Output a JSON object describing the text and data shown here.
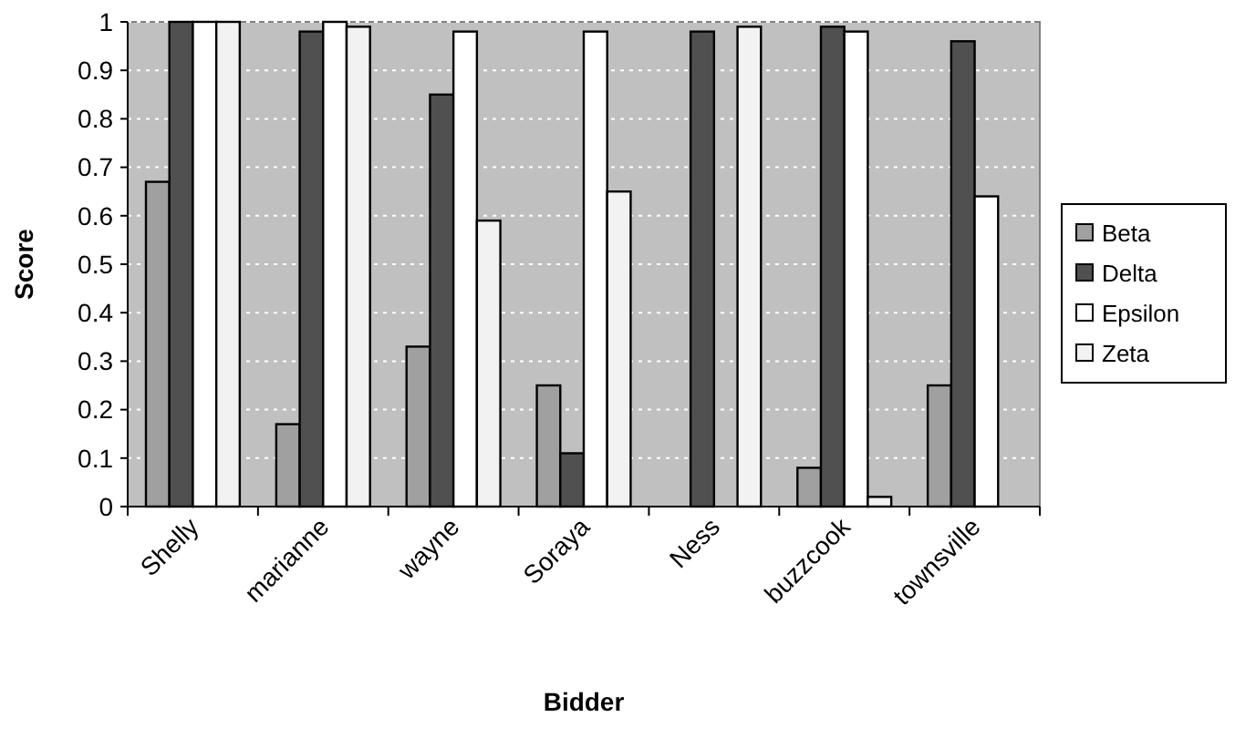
{
  "chart_data": {
    "type": "bar",
    "xlabel": "Bidder",
    "ylabel": "Score",
    "categories": [
      "Shelly",
      "marianne",
      "wayne",
      "Soraya",
      "Ness",
      "buzzcook",
      "townsville"
    ],
    "series": [
      {
        "name": "Beta",
        "color": "#a0a0a0",
        "values": [
          0.67,
          0.17,
          0.33,
          0.25,
          0,
          0.08,
          0.25
        ]
      },
      {
        "name": "Delta",
        "color": "#505050",
        "values": [
          1,
          0.98,
          0.85,
          0.11,
          0.98,
          0.99,
          0.96
        ]
      },
      {
        "name": "Epsilon",
        "color": "#ffffff",
        "values": [
          1,
          1,
          0.98,
          0.98,
          0,
          0.98,
          0.64
        ]
      },
      {
        "name": "Zeta",
        "color": "#f2f2f2",
        "values": [
          1,
          0.99,
          0.59,
          0.65,
          0.99,
          0.02,
          0
        ]
      }
    ],
    "ylim": [
      0,
      1
    ],
    "yticks": [
      0,
      0.1,
      0.2,
      0.3,
      0.4,
      0.5,
      0.6,
      0.7,
      0.8,
      0.9,
      1
    ],
    "grid": "y",
    "legend": "right"
  }
}
